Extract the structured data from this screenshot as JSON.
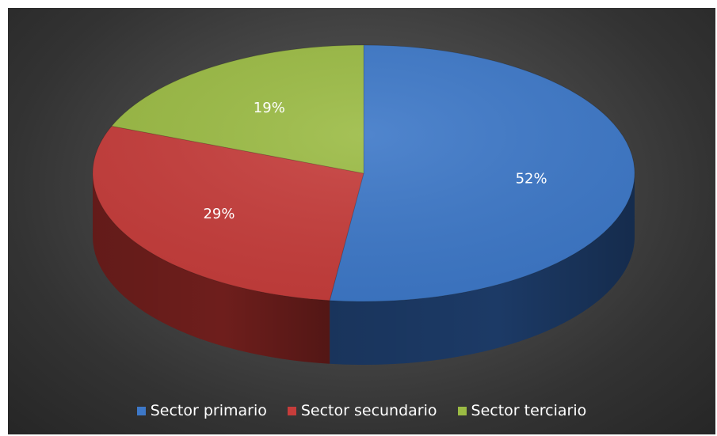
{
  "chart_data": {
    "type": "pie",
    "title": "",
    "categories": [
      "Sector primario",
      "Sector secundario",
      "Sector terciario"
    ],
    "values": [
      52,
      29,
      19
    ],
    "labels": [
      "52%",
      "29%",
      "19%"
    ],
    "colors": [
      "#3d78c8",
      "#c63d3b",
      "#9bbb44"
    ],
    "side_colors": [
      "#1c3a66",
      "#6e1e1c",
      "#50661e"
    ],
    "legend_position": "bottom",
    "style": "3d"
  }
}
